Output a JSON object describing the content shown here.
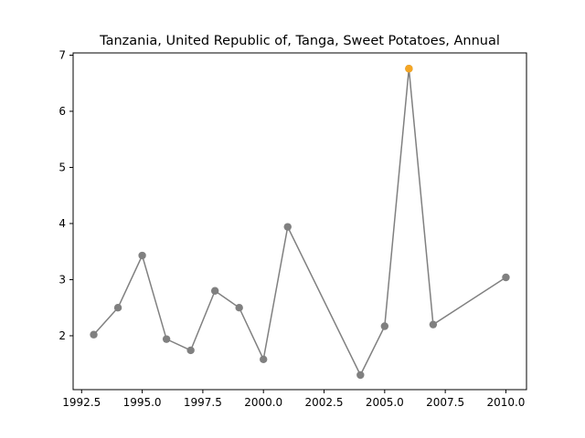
{
  "chart_data": {
    "type": "line",
    "title": "Tanzania, United Republic of, Tanga, Sweet Potatoes, Annual",
    "xlabel": "",
    "ylabel": "",
    "xlim": [
      1992.15,
      2010.85
    ],
    "ylim": [
      1.04,
      7.04
    ],
    "xticks": [
      1992.5,
      1995.0,
      1997.5,
      2000.0,
      2002.5,
      2005.0,
      2007.5,
      2010.0
    ],
    "xtick_labels": [
      "1992.5",
      "1995.0",
      "1997.5",
      "2000.0",
      "2002.5",
      "2005.0",
      "2007.5",
      "2010.0"
    ],
    "yticks": [
      2,
      3,
      4,
      5,
      6,
      7
    ],
    "ytick_labels": [
      "2",
      "3",
      "4",
      "5",
      "6",
      "7"
    ],
    "grid": false,
    "series": [
      {
        "x": [
          1993,
          1994,
          1995,
          1996,
          1997,
          1998,
          1999,
          2000,
          2001,
          2004,
          2005,
          2006,
          2007,
          2010
        ],
        "y": [
          2.02,
          2.5,
          3.43,
          1.94,
          1.74,
          2.8,
          2.5,
          1.58,
          3.94,
          1.3,
          2.17,
          6.76,
          2.2,
          3.04
        ],
        "line_color": "#808080",
        "marker_color": "#808080"
      }
    ],
    "highlight": {
      "x": 2006,
      "y": 6.76,
      "color": "#f5a623"
    }
  }
}
